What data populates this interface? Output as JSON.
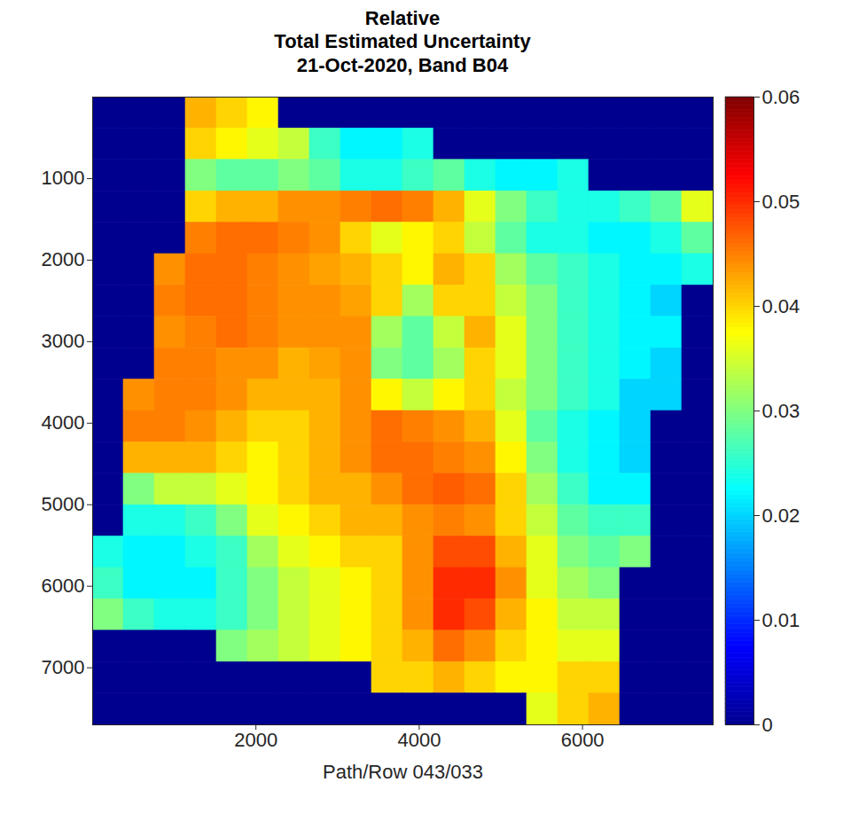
{
  "chart_data": {
    "type": "heatmap",
    "title": "Relative\nTotal Estimated Uncertainty\n21-Oct-2020, Band B04",
    "xlabel": "Path/Row 043/033",
    "xlim": [
      0,
      7600
    ],
    "ylim": [
      7700,
      0
    ],
    "xticks": [
      2000,
      4000,
      6000
    ],
    "yticks": [
      1000,
      2000,
      3000,
      4000,
      5000,
      6000,
      7000
    ],
    "x_edges": [
      0,
      380,
      760,
      1140,
      1520,
      1900,
      2280,
      2660,
      3040,
      3420,
      3800,
      4180,
      4560,
      4940,
      5320,
      5700,
      6080,
      6460,
      6840,
      7220,
      7600
    ],
    "y_edges": [
      0,
      385,
      770,
      1155,
      1540,
      1925,
      2310,
      2695,
      3080,
      3465,
      3850,
      4235,
      4620,
      5005,
      5390,
      5775,
      6160,
      6545,
      6930,
      7315,
      7700
    ],
    "values": [
      [
        0,
        0,
        0,
        0.042,
        0.04,
        0.038,
        0,
        0,
        0,
        0,
        0,
        0,
        0,
        0,
        0,
        0,
        0,
        0,
        0,
        0
      ],
      [
        0,
        0,
        0,
        0.04,
        0.038,
        0.036,
        0.034,
        0.026,
        0.022,
        0.022,
        0.024,
        0,
        0,
        0,
        0,
        0,
        0,
        0,
        0,
        0
      ],
      [
        0,
        0,
        0,
        0.03,
        0.028,
        0.028,
        0.03,
        0.028,
        0.024,
        0.024,
        0.026,
        0.028,
        0.024,
        0.022,
        0.022,
        0.024,
        0,
        0,
        0,
        0
      ],
      [
        0,
        0,
        0,
        0.04,
        0.042,
        0.042,
        0.044,
        0.044,
        0.045,
        0.046,
        0.045,
        0.042,
        0.036,
        0.03,
        0.026,
        0.024,
        0.024,
        0.026,
        0.028,
        0.036
      ],
      [
        0,
        0,
        0,
        0.045,
        0.046,
        0.046,
        0.045,
        0.044,
        0.04,
        0.036,
        0.038,
        0.04,
        0.034,
        0.028,
        0.024,
        0.024,
        0.022,
        0.022,
        0.024,
        0.028
      ],
      [
        0,
        0,
        0.044,
        0.046,
        0.046,
        0.045,
        0.044,
        0.043,
        0.042,
        0.04,
        0.038,
        0.042,
        0.04,
        0.032,
        0.028,
        0.026,
        0.024,
        0.022,
        0.022,
        0.024
      ],
      [
        0,
        0,
        0.045,
        0.046,
        0.046,
        0.045,
        0.044,
        0.044,
        0.043,
        0.04,
        0.032,
        0.04,
        0.04,
        0.034,
        0.03,
        0.026,
        0.024,
        0.022,
        0.02,
        0
      ],
      [
        0,
        0,
        0.044,
        0.045,
        0.046,
        0.045,
        0.044,
        0.044,
        0.044,
        0.032,
        0.028,
        0.034,
        0.042,
        0.036,
        0.03,
        0.026,
        0.024,
        0.022,
        0.022,
        0
      ],
      [
        0,
        0,
        0.045,
        0.045,
        0.044,
        0.044,
        0.042,
        0.043,
        0.044,
        0.03,
        0.028,
        0.032,
        0.04,
        0.036,
        0.03,
        0.026,
        0.024,
        0.022,
        0.02,
        0
      ],
      [
        0,
        0.044,
        0.045,
        0.045,
        0.044,
        0.042,
        0.042,
        0.042,
        0.044,
        0.038,
        0.034,
        0.038,
        0.04,
        0.034,
        0.03,
        0.026,
        0.024,
        0.02,
        0.02,
        0
      ],
      [
        0,
        0.045,
        0.045,
        0.044,
        0.042,
        0.04,
        0.04,
        0.042,
        0.044,
        0.046,
        0.045,
        0.044,
        0.042,
        0.036,
        0.028,
        0.024,
        0.022,
        0.02,
        0,
        0
      ],
      [
        0,
        0.042,
        0.042,
        0.042,
        0.04,
        0.038,
        0.04,
        0.042,
        0.044,
        0.046,
        0.046,
        0.045,
        0.044,
        0.038,
        0.03,
        0.024,
        0.022,
        0.02,
        0,
        0
      ],
      [
        0,
        0.03,
        0.034,
        0.034,
        0.036,
        0.038,
        0.04,
        0.042,
        0.042,
        0.044,
        0.046,
        0.047,
        0.046,
        0.04,
        0.032,
        0.026,
        0.022,
        0.022,
        0,
        0
      ],
      [
        0,
        0.024,
        0.024,
        0.026,
        0.03,
        0.036,
        0.038,
        0.04,
        0.042,
        0.042,
        0.044,
        0.045,
        0.044,
        0.04,
        0.034,
        0.028,
        0.026,
        0.026,
        0,
        0
      ],
      [
        0.024,
        0.022,
        0.022,
        0.024,
        0.026,
        0.032,
        0.036,
        0.038,
        0.04,
        0.04,
        0.044,
        0.048,
        0.048,
        0.042,
        0.036,
        0.03,
        0.028,
        0.03,
        0,
        0
      ],
      [
        0.026,
        0.022,
        0.022,
        0.022,
        0.026,
        0.03,
        0.034,
        0.036,
        0.038,
        0.04,
        0.044,
        0.05,
        0.05,
        0.044,
        0.036,
        0.032,
        0.03,
        0,
        0,
        0
      ],
      [
        0.03,
        0.026,
        0.024,
        0.024,
        0.026,
        0.03,
        0.034,
        0.036,
        0.038,
        0.04,
        0.044,
        0.05,
        0.048,
        0.042,
        0.038,
        0.034,
        0.034,
        0,
        0,
        0
      ],
      [
        0,
        0,
        0,
        0,
        0.03,
        0.032,
        0.034,
        0.036,
        0.038,
        0.04,
        0.042,
        0.046,
        0.044,
        0.04,
        0.038,
        0.036,
        0.036,
        0,
        0,
        0
      ],
      [
        0,
        0,
        0,
        0,
        0,
        0,
        0,
        0,
        0,
        0.04,
        0.04,
        0.042,
        0.04,
        0.038,
        0.038,
        0.04,
        0.04,
        0,
        0,
        0
      ],
      [
        0,
        0,
        0,
        0,
        0,
        0,
        0,
        0,
        0,
        0,
        0,
        0,
        0,
        0,
        0.036,
        0.04,
        0.042,
        0,
        0,
        0
      ]
    ],
    "colorbar_range": [
      0,
      0.06
    ],
    "colorbar_ticks": [
      0,
      0.01,
      0.02,
      0.03,
      0.04,
      0.05,
      0.06
    ]
  }
}
